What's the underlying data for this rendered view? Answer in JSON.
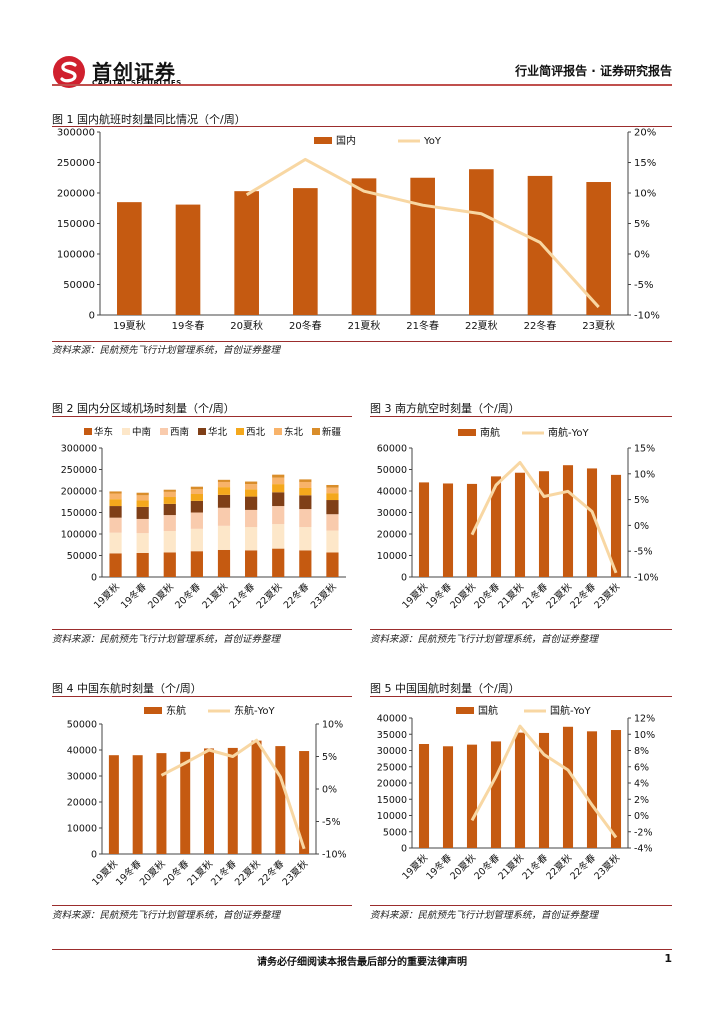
{
  "header": {
    "logo_cn": "首创证券",
    "logo_en": "CAPITAL SECURITIES",
    "report_type": "行业简评报告 · 证券研究报告"
  },
  "footer": {
    "disclaimer": "请务必仔细阅读本报告最后部分的重要法律声明",
    "page_number": "1"
  },
  "colors": {
    "bar": "#c55a11",
    "line": "#f8d7a3",
    "rule": "#9b2d2d",
    "logo_red": "#d0202e"
  },
  "figures": [
    {
      "title": "图 1 国内航班时刻量同比情况（个/周）",
      "source": "资料来源：民航预先飞行计划管理系统，首创证券整理"
    },
    {
      "title": "图 2 国内分区域机场时刻量（个/周）",
      "source": "资料来源：民航预先飞行计划管理系统，首创证券整理"
    },
    {
      "title": "图 3 南方航空时刻量（个/周）",
      "source": "资料来源：民航预先飞行计划管理系统，首创证券整理"
    },
    {
      "title": "图 4 中国东航时刻量（个/周）",
      "source": "资料来源：民航预先飞行计划管理系统，首创证券整理"
    },
    {
      "title": "图 5 中国国航时刻量（个/周）",
      "source": "资料来源：民航预先飞行计划管理系统，首创证券整理"
    }
  ],
  "chart_data": [
    {
      "type": "bar",
      "title": "图 1 国内航班时刻量同比情况（个/周）",
      "categories": [
        "19夏秋",
        "19冬春",
        "20夏秋",
        "20冬春",
        "21夏秋",
        "21冬春",
        "22夏秋",
        "22冬春",
        "23夏秋"
      ],
      "series": [
        {
          "name": "国内",
          "type": "bar",
          "axis": "left",
          "values": [
            185000,
            181000,
            203000,
            208000,
            224000,
            225000,
            239000,
            228000,
            218000
          ]
        },
        {
          "name": "YoY",
          "type": "line",
          "axis": "right",
          "values": [
            null,
            null,
            9.7,
            15.5,
            10.3,
            8.0,
            6.6,
            1.9,
            -8.7
          ]
        }
      ],
      "ylim": [
        0,
        300000
      ],
      "yticks": [
        0,
        50000,
        100000,
        150000,
        200000,
        250000,
        300000
      ],
      "y2lim": [
        -10,
        20
      ],
      "y2ticks": [
        "-10%",
        "-5%",
        "0%",
        "5%",
        "10%",
        "15%",
        "20%"
      ],
      "legend": "top-center"
    },
    {
      "type": "bar",
      "stacked": true,
      "title": "图 2 国内分区域机场时刻量（个/周）",
      "categories": [
        "19夏秋",
        "19冬春",
        "20夏秋",
        "20冬春",
        "21夏秋",
        "21冬春",
        "22夏秋",
        "22冬春",
        "23夏秋"
      ],
      "series": [
        {
          "name": "华东",
          "color": "#c55a11",
          "values": [
            55000,
            56000,
            57000,
            60000,
            63000,
            62000,
            66000,
            62000,
            57000
          ]
        },
        {
          "name": "中南",
          "color": "#fde7c9",
          "values": [
            48000,
            46000,
            50000,
            52000,
            56000,
            54000,
            57000,
            54000,
            51000
          ]
        },
        {
          "name": "西南",
          "color": "#f9cbad",
          "values": [
            35000,
            33000,
            37000,
            38000,
            42000,
            40000,
            42000,
            42000,
            38000
          ]
        },
        {
          "name": "华北",
          "color": "#7f3f17",
          "values": [
            27000,
            28000,
            26000,
            27000,
            30000,
            31000,
            32000,
            32000,
            33000
          ]
        },
        {
          "name": "西北",
          "color": "#f4a81c",
          "values": [
            16000,
            15000,
            16000,
            16000,
            18000,
            17000,
            19000,
            17000,
            16000
          ]
        },
        {
          "name": "东北",
          "color": "#f8b36a",
          "values": [
            13000,
            12000,
            12000,
            11000,
            12000,
            12000,
            15000,
            14000,
            13000
          ]
        },
        {
          "name": "新疆",
          "color": "#d98d2a",
          "values": [
            5000,
            6000,
            5000,
            6000,
            5000,
            6000,
            7000,
            6000,
            6000
          ]
        }
      ],
      "ylim": [
        0,
        300000
      ],
      "yticks": [
        0,
        50000,
        100000,
        150000,
        200000,
        250000,
        300000
      ],
      "legend": "top"
    },
    {
      "type": "bar",
      "title": "图 3 南方航空时刻量（个/周）",
      "categories": [
        "19夏秋",
        "19冬春",
        "20夏秋",
        "20冬春",
        "21夏秋",
        "21冬春",
        "22夏秋",
        "22冬春",
        "23夏秋"
      ],
      "series": [
        {
          "name": "南航",
          "type": "bar",
          "axis": "left",
          "values": [
            44000,
            43500,
            43300,
            46800,
            48500,
            49200,
            52000,
            50500,
            47500
          ]
        },
        {
          "name": "南航-YoY",
          "type": "line",
          "axis": "right",
          "values": [
            null,
            null,
            -1.8,
            7.8,
            12.2,
            5.6,
            6.6,
            2.7,
            -9.2
          ]
        }
      ],
      "ylim": [
        0,
        60000
      ],
      "yticks": [
        0,
        10000,
        20000,
        30000,
        40000,
        50000,
        60000
      ],
      "y2lim": [
        -10,
        15
      ],
      "y2ticks": [
        "-10%",
        "-5%",
        "0%",
        "5%",
        "10%",
        "15%"
      ],
      "legend": "top-center"
    },
    {
      "type": "bar",
      "title": "图 4 中国东航时刻量（个/周）",
      "categories": [
        "19夏秋",
        "19冬春",
        "20夏秋",
        "20冬春",
        "21夏秋",
        "21冬春",
        "22夏秋",
        "22冬春",
        "23夏秋"
      ],
      "series": [
        {
          "name": "东航",
          "type": "bar",
          "axis": "left",
          "values": [
            38000,
            38000,
            38800,
            39300,
            40600,
            40800,
            43600,
            41500,
            39600
          ]
        },
        {
          "name": "东航-YoY",
          "type": "line",
          "axis": "right",
          "values": [
            null,
            null,
            2.1,
            4.0,
            6.0,
            5.0,
            7.5,
            1.9,
            -9.2
          ]
        }
      ],
      "ylim": [
        0,
        50000
      ],
      "yticks": [
        0,
        10000,
        20000,
        30000,
        40000,
        50000
      ],
      "y2lim": [
        -10,
        10
      ],
      "y2ticks": [
        "-10%",
        "-5%",
        "0%",
        "5%",
        "10%"
      ],
      "legend": "top-center"
    },
    {
      "type": "bar",
      "title": "图 5 中国国航时刻量（个/周）",
      "categories": [
        "19夏秋",
        "19冬春",
        "20夏秋",
        "20冬春",
        "21夏秋",
        "21冬春",
        "22夏秋",
        "22冬春",
        "23夏秋"
      ],
      "series": [
        {
          "name": "国航",
          "type": "bar",
          "axis": "left",
          "values": [
            32000,
            31300,
            31800,
            32800,
            35500,
            35400,
            37300,
            35900,
            36300
          ]
        },
        {
          "name": "国航-YoY",
          "type": "line",
          "axis": "right",
          "values": [
            null,
            null,
            -0.6,
            4.8,
            11.0,
            7.5,
            5.6,
            1.3,
            -2.7
          ]
        }
      ],
      "ylim": [
        0,
        40000
      ],
      "yticks": [
        0,
        5000,
        10000,
        15000,
        20000,
        25000,
        30000,
        35000,
        40000
      ],
      "y2lim": [
        -4,
        12
      ],
      "y2ticks": [
        "-4%",
        "-2%",
        "0%",
        "2%",
        "4%",
        "6%",
        "8%",
        "10%",
        "12%"
      ],
      "legend": "top-center"
    }
  ]
}
